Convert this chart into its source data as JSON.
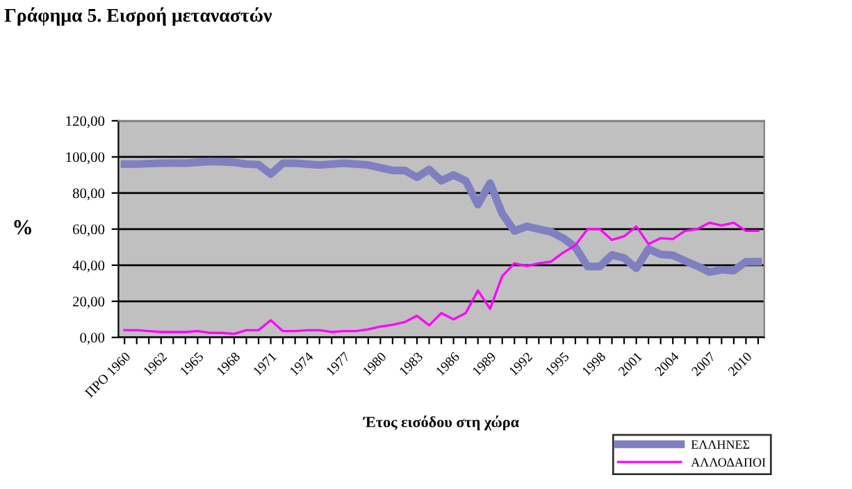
{
  "chart_data": {
    "type": "line",
    "title": "Γράφημα 5. Εισροή μεταναστών",
    "xlabel": "Έτος εισόδου στη χώρα",
    "ylabel": "%",
    "categories": [
      "ΠΡΟ 1960",
      null,
      null,
      "1962",
      null,
      null,
      "1965",
      null,
      null,
      "1968",
      null,
      null,
      "1971",
      null,
      null,
      "1974",
      null,
      null,
      "1977",
      null,
      null,
      "1980",
      null,
      null,
      "1983",
      null,
      null,
      "1986",
      null,
      null,
      "1989",
      null,
      null,
      "1992",
      null,
      null,
      "1995",
      null,
      null,
      "1998",
      null,
      null,
      "2001",
      null,
      null,
      "2004",
      null,
      null,
      "2007",
      null,
      null,
      "2010",
      null
    ],
    "series": [
      {
        "name": "ΕΛΛΗΝΕΣ",
        "color": "#8080c0",
        "values": [
          96,
          96,
          96.3,
          96.5,
          96.6,
          96.5,
          97,
          97.5,
          97.3,
          97,
          96,
          95.7,
          90.5,
          96.5,
          96.5,
          96,
          95.5,
          96,
          96.5,
          96,
          95.5,
          94,
          92.5,
          92.5,
          88.7,
          93,
          86.8,
          90,
          86.8,
          73.6,
          85.5,
          68.5,
          59,
          61.5,
          60,
          58.5,
          55,
          50,
          39.3,
          39.3,
          45.7,
          44,
          38.3,
          49,
          46,
          45.5,
          42.4,
          39.5,
          36.2,
          37.5,
          37,
          41.9,
          41.9
        ]
      },
      {
        "name": "ΑΛΛΟΔΑΠΟΙ",
        "color": "#ff00ff",
        "values": [
          4,
          4,
          3.5,
          3,
          3,
          3,
          3.5,
          2.5,
          2.5,
          2,
          4,
          4,
          9.5,
          3.5,
          3.5,
          4,
          4,
          3,
          3.5,
          3.5,
          4.5,
          6,
          7,
          8.5,
          12,
          6.7,
          13.5,
          10,
          13.5,
          26,
          15.8,
          34,
          41,
          39.5,
          41,
          42,
          47,
          51,
          60,
          60,
          54,
          56,
          61.5,
          51.7,
          55,
          54.5,
          59,
          60,
          63.5,
          62,
          63.5,
          59,
          59
        ]
      }
    ],
    "ylim": [
      0,
      120
    ],
    "yticks": [
      {
        "value": 0,
        "label": "0,00"
      },
      {
        "value": 20,
        "label": "20,00"
      },
      {
        "value": 40,
        "label": "40,00"
      },
      {
        "value": 60,
        "label": "60,00"
      },
      {
        "value": 80,
        "label": "80,00"
      },
      {
        "value": 100,
        "label": "100,00"
      },
      {
        "value": 120,
        "label": "120,00"
      }
    ],
    "grid": "y",
    "legend": "bottom right",
    "marker": "none",
    "line_style": "solid"
  }
}
